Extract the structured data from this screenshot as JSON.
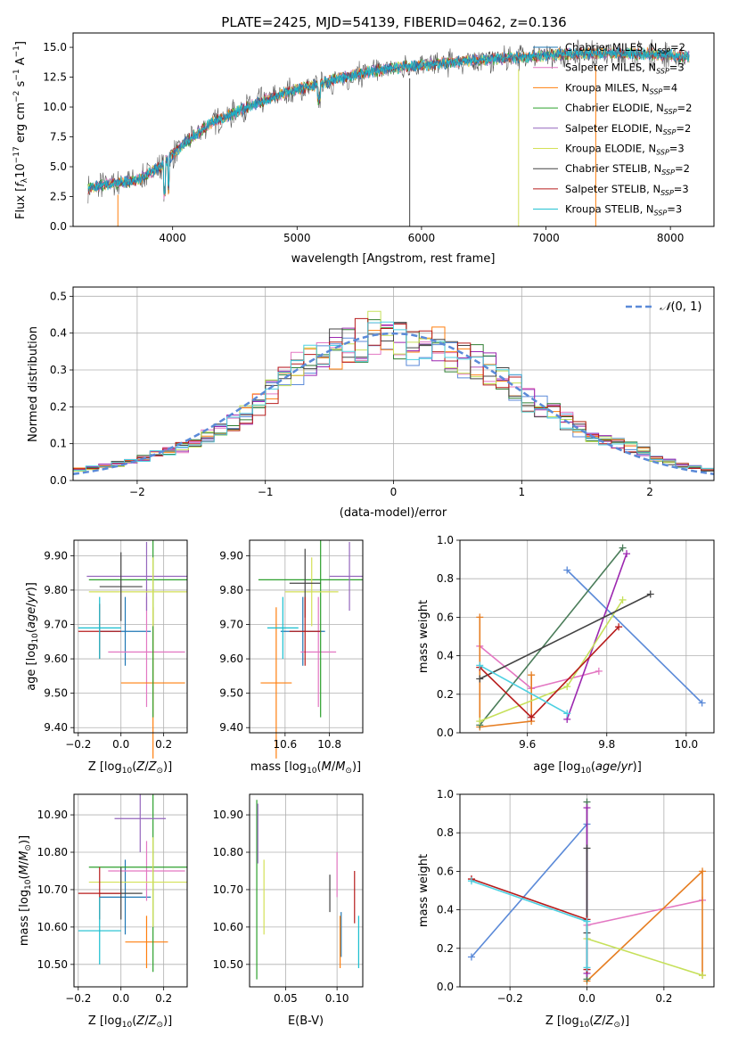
{
  "figure": {
    "title": "PLATE=2425, MJD=54139, FIBERID=0462, z=0.136",
    "colors": {
      "chabrier_miles": "#1f77b4",
      "salpeter_miles": "#e377c2",
      "kroupa_miles": "#ff7f0e",
      "chabrier_elodie": "#2ca02c",
      "salpeter_elodie": "#9467bd",
      "kroupa_elodie": "#d4e157",
      "chabrier_stelib": "#444444",
      "salpeter_stelib": "#b71c1c",
      "kroupa_stelib": "#17becf"
    }
  },
  "chart_data": [
    {
      "id": "spectrum",
      "type": "line",
      "xlabel": "wavelength [Angstrom, rest frame]",
      "ylabel": "Flux [f_λ 10^-17 erg cm^-2 s^-1 A^-1]",
      "xlim": [
        3200,
        8350
      ],
      "ylim": [
        0,
        16.2
      ],
      "xticks": [
        4000,
        5000,
        6000,
        7000,
        8000
      ],
      "yticks": [
        0.0,
        2.5,
        5.0,
        7.5,
        10.0,
        12.5,
        15.0
      ],
      "legend_position": "top-right",
      "legend": [
        "Chabrier MILES, N_SSP=2",
        "Salpeter MILES, N_SSP=3",
        "Kroupa MILES, N_SSP=4",
        "Chabrier ELODIE, N_SSP=2",
        "Salpeter ELODIE, N_SSP=2",
        "Kroupa ELODIE, N_SSP=3",
        "Chabrier STELIB, N_SSP=2",
        "Salpeter STELIB, N_SSP=3",
        "Kroupa STELIB, N_SSP=3"
      ],
      "continuum": {
        "wavelength": [
          3320,
          3500,
          3700,
          3900,
          4100,
          4300,
          4600,
          4900,
          5200,
          5500,
          5800,
          6100,
          6400,
          6700,
          7000,
          7300,
          7600,
          7900,
          8150
        ],
        "flux": [
          3.2,
          3.6,
          3.8,
          5.0,
          7.0,
          8.6,
          10.0,
          11.2,
          12.0,
          12.8,
          13.3,
          13.6,
          13.9,
          14.1,
          14.3,
          14.5,
          14.5,
          14.4,
          14.2
        ]
      }
    },
    {
      "id": "residuals",
      "type": "histogram",
      "xlabel": "(data-model)/error",
      "ylabel": "Normed distribution",
      "xlim": [
        -2.5,
        2.5
      ],
      "ylim": [
        0,
        0.525
      ],
      "xticks": [
        -2,
        -1,
        0,
        1,
        2
      ],
      "yticks": [
        0.0,
        0.1,
        0.2,
        0.3,
        0.4,
        0.5
      ],
      "grid": true,
      "legend_position": "top-right",
      "reference_curve": "N(0,1)",
      "bin_edges": [
        -2.5,
        -2.4,
        -2.3,
        -2.2,
        -2.1,
        -2.0,
        -1.9,
        -1.8,
        -1.7,
        -1.6,
        -1.5,
        -1.4,
        -1.3,
        -1.2,
        -1.1,
        -1.0,
        -0.9,
        -0.8,
        -0.7,
        -0.6,
        -0.5,
        -0.4,
        -0.3,
        -0.2,
        -0.1,
        0.0,
        0.1,
        0.2,
        0.3,
        0.4,
        0.5,
        0.6,
        0.7,
        0.8,
        0.9,
        1.0,
        1.1,
        1.2,
        1.3,
        1.4,
        1.5,
        1.6,
        1.7,
        1.8,
        1.9,
        2.0,
        2.1,
        2.2,
        2.3,
        2.4,
        2.5
      ],
      "envelope": [
        0.03,
        0.035,
        0.04,
        0.045,
        0.05,
        0.06,
        0.07,
        0.08,
        0.09,
        0.1,
        0.12,
        0.14,
        0.16,
        0.18,
        0.21,
        0.24,
        0.27,
        0.3,
        0.32,
        0.34,
        0.36,
        0.38,
        0.38,
        0.4,
        0.38,
        0.39,
        0.37,
        0.37,
        0.36,
        0.35,
        0.33,
        0.32,
        0.3,
        0.27,
        0.25,
        0.22,
        0.2,
        0.18,
        0.16,
        0.14,
        0.12,
        0.11,
        0.1,
        0.09,
        0.08,
        0.06,
        0.05,
        0.04,
        0.035,
        0.03
      ]
    },
    {
      "id": "age-vs-Z",
      "type": "errorbar",
      "xlabel": "Z [log10(Z/Z⊙)]",
      "ylabel": "age  [log10(age/yr)]",
      "xlim": [
        -0.22,
        0.31
      ],
      "ylim": [
        9.385,
        9.945
      ],
      "xticks": [
        -0.2,
        0.0,
        0.2
      ],
      "yticks": [
        9.4,
        9.5,
        9.6,
        9.7,
        9.8,
        9.9
      ],
      "grid": true,
      "points": [
        {
          "series": "chabrier_miles",
          "x": 0.02,
          "xerr": 0.12,
          "y": 9.68,
          "yerr": 0.1
        },
        {
          "series": "salpeter_miles",
          "x": 0.12,
          "xerr": 0.18,
          "y": 9.62,
          "yerr": 0.16
        },
        {
          "series": "kroupa_miles",
          "x": 0.15,
          "xerr": 0.15,
          "y": 9.53,
          "yerr": 0.22
        },
        {
          "series": "chabrier_elodie",
          "x": 0.15,
          "xerr": 0.3,
          "y": 9.83,
          "yerr": 0.4
        },
        {
          "series": "salpeter_elodie",
          "x": 0.12,
          "xerr": 0.28,
          "y": 9.84,
          "yerr": 0.1
        },
        {
          "series": "kroupa_elodie",
          "x": 0.15,
          "xerr": 0.3,
          "y": 9.795,
          "yerr": 0.1
        },
        {
          "series": "chabrier_stelib",
          "x": 0.0,
          "xerr": 0.1,
          "y": 9.81,
          "yerr": 0.1
        },
        {
          "series": "salpeter_stelib",
          "x": -0.1,
          "xerr": 0.1,
          "y": 9.68,
          "yerr": 0.08
        },
        {
          "series": "kroupa_stelib",
          "x": -0.1,
          "xerr": 0.1,
          "y": 9.69,
          "yerr": 0.09
        }
      ]
    },
    {
      "id": "age-vs-mass",
      "type": "errorbar",
      "xlabel": "mass [log10(M/M⊙)]",
      "ylabel": "",
      "xlim": [
        10.44,
        10.95
      ],
      "ylim": [
        9.385,
        9.945
      ],
      "xticks": [
        10.6,
        10.8
      ],
      "yticks": [
        9.4,
        9.5,
        9.6,
        9.7,
        9.8,
        9.9
      ],
      "grid": true,
      "points": [
        {
          "series": "chabrier_miles",
          "x": 10.68,
          "xerr": 0.1,
          "y": 9.68,
          "yerr": 0.1
        },
        {
          "series": "salpeter_miles",
          "x": 10.75,
          "xerr": 0.08,
          "y": 9.62,
          "yerr": 0.16
        },
        {
          "series": "kroupa_miles",
          "x": 10.56,
          "xerr": 0.07,
          "y": 9.53,
          "yerr": 0.22
        },
        {
          "series": "chabrier_elodie",
          "x": 10.76,
          "xerr": 0.28,
          "y": 9.83,
          "yerr": 0.4
        },
        {
          "series": "salpeter_elodie",
          "x": 10.89,
          "xerr": 0.09,
          "y": 9.84,
          "yerr": 0.1
        },
        {
          "series": "kroupa_elodie",
          "x": 10.72,
          "xerr": 0.12,
          "y": 9.795,
          "yerr": 0.1
        },
        {
          "series": "chabrier_stelib",
          "x": 10.69,
          "xerr": 0.07,
          "y": 9.82,
          "yerr": 0.1
        },
        {
          "series": "salpeter_stelib",
          "x": 10.69,
          "xerr": 0.07,
          "y": 9.68,
          "yerr": 0.1
        },
        {
          "series": "kroupa_stelib",
          "x": 10.59,
          "xerr": 0.07,
          "y": 9.69,
          "yerr": 0.09
        }
      ]
    },
    {
      "id": "mass-weight-vs-age",
      "type": "line",
      "xlabel": "age  [log10(age/yr)]",
      "ylabel": "mass weight",
      "xlim": [
        9.43,
        10.07
      ],
      "ylim": [
        0,
        1
      ],
      "xticks": [
        9.6,
        9.8,
        10.0
      ],
      "yticks": [
        0.0,
        0.2,
        0.4,
        0.6,
        0.8,
        1.0
      ],
      "grid": true,
      "series": [
        {
          "key": "chabrier_miles",
          "x": [
            9.7,
            10.04
          ],
          "y": [
            0.845,
            0.155
          ]
        },
        {
          "key": "salpeter_miles",
          "x": [
            9.48,
            9.61,
            9.78
          ],
          "y": [
            0.45,
            0.23,
            0.32
          ]
        },
        {
          "key": "kroupa_miles",
          "x": [
            9.48,
            9.48,
            9.61,
            9.61
          ],
          "y": [
            0.6,
            0.03,
            0.06,
            0.3
          ]
        },
        {
          "key": "chabrier_elodie",
          "x": [
            9.48,
            9.84
          ],
          "y": [
            0.04,
            0.96
          ]
        },
        {
          "key": "salpeter_elodie",
          "x": [
            9.7,
            9.85
          ],
          "y": [
            0.07,
            0.93
          ]
        },
        {
          "key": "kroupa_elodie",
          "x": [
            9.48,
            9.7,
            9.84
          ],
          "y": [
            0.06,
            0.24,
            0.69
          ]
        },
        {
          "key": "chabrier_stelib",
          "x": [
            9.48,
            9.91
          ],
          "y": [
            0.28,
            0.72
          ]
        },
        {
          "key": "salpeter_stelib",
          "x": [
            9.48,
            9.61,
            9.83
          ],
          "y": [
            0.34,
            0.08,
            0.55
          ]
        },
        {
          "key": "kroupa_stelib",
          "x": [
            9.48,
            9.7
          ],
          "y": [
            0.35,
            0.1
          ]
        }
      ]
    },
    {
      "id": "mass-vs-Z",
      "type": "errorbar",
      "xlabel": "Z [log10(Z/Z⊙)]",
      "ylabel": "mass [log10(M/M⊙)]",
      "xlim": [
        -0.22,
        0.31
      ],
      "ylim": [
        10.44,
        10.955
      ],
      "xticks": [
        -0.2,
        0.0,
        0.2
      ],
      "yticks": [
        10.5,
        10.6,
        10.7,
        10.8,
        10.9
      ],
      "grid": true,
      "points": [
        {
          "series": "chabrier_miles",
          "x": 0.02,
          "xerr": 0.12,
          "y": 10.68,
          "yerr": 0.1
        },
        {
          "series": "salpeter_miles",
          "x": 0.12,
          "xerr": 0.18,
          "y": 10.75,
          "yerr": 0.08
        },
        {
          "series": "kroupa_miles",
          "x": 0.12,
          "xerr": 0.1,
          "y": 10.56,
          "yerr": 0.07
        },
        {
          "series": "chabrier_elodie",
          "x": 0.15,
          "xerr": 0.3,
          "y": 10.76,
          "yerr": 0.28
        },
        {
          "series": "salpeter_elodie",
          "x": 0.09,
          "xerr": 0.12,
          "y": 10.89,
          "yerr": 0.09
        },
        {
          "series": "kroupa_elodie",
          "x": 0.15,
          "xerr": 0.3,
          "y": 10.72,
          "yerr": 0.12
        },
        {
          "series": "chabrier_stelib",
          "x": 0.0,
          "xerr": 0.1,
          "y": 10.69,
          "yerr": 0.07
        },
        {
          "series": "salpeter_stelib",
          "x": -0.1,
          "xerr": 0.1,
          "y": 10.69,
          "yerr": 0.07
        },
        {
          "series": "kroupa_stelib",
          "x": -0.1,
          "xerr": 0.1,
          "y": 10.59,
          "yerr": 0.09
        }
      ]
    },
    {
      "id": "mass-vs-ebv",
      "type": "errorbar",
      "xlabel": "E(B-V)",
      "ylabel": "",
      "xlim": [
        0.015,
        0.125
      ],
      "ylim": [
        10.44,
        10.955
      ],
      "xticks": [
        0.05,
        0.1
      ],
      "xtick_labels": [
        "0.05",
        "0.10"
      ],
      "yticks": [
        10.5,
        10.6,
        10.7,
        10.8,
        10.9
      ],
      "grid": true,
      "points": [
        {
          "series": "chabrier_miles",
          "x": 0.104,
          "y": 10.58,
          "yerr": 0.06
        },
        {
          "series": "salpeter_miles",
          "x": 0.1,
          "y": 10.74,
          "yerr": 0.06
        },
        {
          "series": "kroupa_miles",
          "x": 0.103,
          "y": 10.56,
          "yerr": 0.07
        },
        {
          "series": "chabrier_elodie",
          "x": 0.022,
          "y": 10.7,
          "yerr": 0.24
        },
        {
          "series": "salpeter_elodie",
          "x": 0.023,
          "y": 10.85,
          "yerr": 0.08
        },
        {
          "series": "kroupa_elodie",
          "x": 0.029,
          "y": 10.68,
          "yerr": 0.1
        },
        {
          "series": "chabrier_stelib",
          "x": 0.093,
          "y": 10.69,
          "yerr": 0.05
        },
        {
          "series": "salpeter_stelib",
          "x": 0.117,
          "y": 10.68,
          "yerr": 0.07
        },
        {
          "series": "kroupa_stelib",
          "x": 0.121,
          "y": 10.56,
          "yerr": 0.07
        }
      ]
    },
    {
      "id": "mass-weight-vs-Z",
      "type": "line",
      "xlabel": "Z [log10(Z/Z⊙)]",
      "ylabel": "mass weight",
      "xlim": [
        -0.33,
        0.33
      ],
      "ylim": [
        0,
        1
      ],
      "xticks": [
        -0.2,
        0.0,
        0.2
      ],
      "yticks": [
        0.0,
        0.2,
        0.4,
        0.6,
        0.8,
        1.0
      ],
      "grid": true,
      "series": [
        {
          "key": "chabrier_miles",
          "x": [
            -0.3,
            0.0
          ],
          "y": [
            0.155,
            0.845
          ]
        },
        {
          "key": "salpeter_miles",
          "x": [
            0.0,
            0.3
          ],
          "y": [
            0.32,
            0.45
          ]
        },
        {
          "key": "kroupa_miles",
          "x": [
            0.0,
            0.3,
            0.3
          ],
          "y": [
            0.03,
            0.6,
            0.06
          ]
        },
        {
          "key": "chabrier_elodie",
          "x": [
            0.0,
            0.0
          ],
          "y": [
            0.04,
            0.96
          ]
        },
        {
          "key": "salpeter_elodie",
          "x": [
            0.0,
            0.0
          ],
          "y": [
            0.07,
            0.93
          ]
        },
        {
          "key": "kroupa_elodie",
          "x": [
            0.0,
            0.3
          ],
          "y": [
            0.25,
            0.06
          ]
        },
        {
          "key": "chabrier_stelib",
          "x": [
            0.0,
            0.0
          ],
          "y": [
            0.28,
            0.72
          ]
        },
        {
          "key": "salpeter_stelib",
          "x": [
            -0.3,
            0.0,
            0.0
          ],
          "y": [
            0.56,
            0.35,
            0.09
          ]
        },
        {
          "key": "kroupa_stelib",
          "x": [
            -0.3,
            0.0,
            0.0
          ],
          "y": [
            0.55,
            0.34,
            0.1
          ]
        }
      ]
    }
  ]
}
